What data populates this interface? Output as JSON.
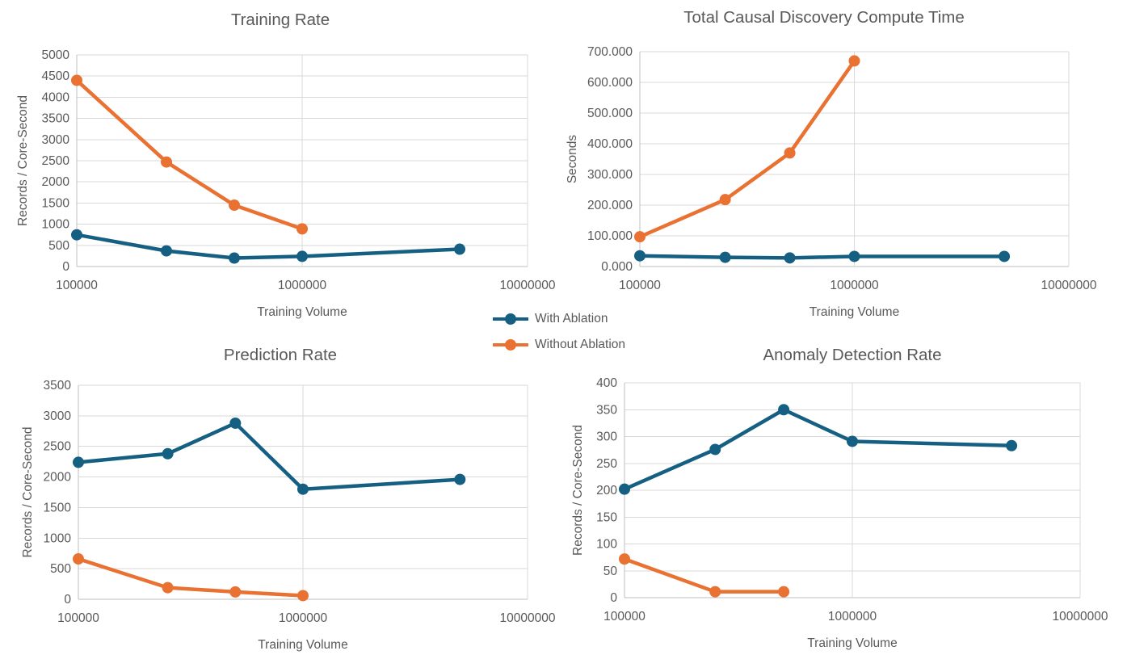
{
  "colors": {
    "with_ablation": "#156082",
    "without_ablation": "#E97132",
    "title_text": "#595959",
    "axis_text": "#595959",
    "gridline": "#D9D9D9",
    "axis_line": "#BFBFBF"
  },
  "legend": {
    "position": "center-between-charts",
    "items": [
      {
        "label": "With Ablation",
        "color_key": "with_ablation"
      },
      {
        "label": "Without Ablation",
        "color_key": "without_ablation"
      }
    ]
  },
  "chart_data": [
    {
      "id": "training-rate",
      "type": "line",
      "title": "Training Rate",
      "xlabel": "Training Volume",
      "ylabel": "Records / Core-Second",
      "x_scale": "log",
      "grid": true,
      "xlim": [
        100000,
        10000000
      ],
      "xticks": [
        100000,
        1000000,
        10000000
      ],
      "xtick_labels": [
        "100000",
        "1000000",
        "10000000"
      ],
      "ylim": [
        0,
        5000
      ],
      "ytick_step": 500,
      "ytick_labels": [
        "0",
        "500",
        "1000",
        "1500",
        "2000",
        "2500",
        "3000",
        "3500",
        "4000",
        "4500",
        "5000"
      ],
      "series": [
        {
          "name": "With Ablation",
          "color_key": "with_ablation",
          "x": [
            100000,
            250000,
            500000,
            1000000,
            5000000
          ],
          "y": [
            750,
            370,
            200,
            240,
            410
          ]
        },
        {
          "name": "Without Ablation",
          "color_key": "without_ablation",
          "x": [
            100000,
            250000,
            500000,
            1000000
          ],
          "y": [
            4400,
            2470,
            1450,
            890
          ]
        }
      ]
    },
    {
      "id": "total-causal-discovery-compute-time",
      "type": "line",
      "title": "Total Causal Discovery Compute Time",
      "xlabel": "Training Volume",
      "ylabel": "Seconds",
      "x_scale": "log",
      "grid": true,
      "xlim": [
        100000,
        10000000
      ],
      "xticks": [
        100000,
        1000000,
        10000000
      ],
      "xtick_labels": [
        "100000",
        "1000000",
        "10000000"
      ],
      "ylim": [
        0,
        700000
      ],
      "ytick_step": 100000,
      "ytick_labels": [
        "0.000",
        "100.000",
        "200.000",
        "300.000",
        "400.000",
        "500.000",
        "600.000",
        "700.000"
      ],
      "series": [
        {
          "name": "With Ablation",
          "color_key": "with_ablation",
          "x": [
            100000,
            250000,
            500000,
            1000000,
            5000000
          ],
          "y": [
            35000,
            30000,
            28000,
            33000,
            33000
          ]
        },
        {
          "name": "Without Ablation",
          "color_key": "without_ablation",
          "x": [
            100000,
            250000,
            500000,
            1000000
          ],
          "y": [
            97000,
            218000,
            370000,
            670000
          ]
        }
      ]
    },
    {
      "id": "prediction-rate",
      "type": "line",
      "title": "Prediction Rate",
      "xlabel": "Training Volume",
      "ylabel": "Records / Core-Second",
      "x_scale": "log",
      "grid": true,
      "xlim": [
        100000,
        10000000
      ],
      "xticks": [
        100000,
        1000000,
        10000000
      ],
      "xtick_labels": [
        "100000",
        "1000000",
        "10000000"
      ],
      "ylim": [
        0,
        3500
      ],
      "ytick_step": 500,
      "ytick_labels": [
        "0",
        "500",
        "1000",
        "1500",
        "2000",
        "2500",
        "3000",
        "3500"
      ],
      "series": [
        {
          "name": "With Ablation",
          "color_key": "with_ablation",
          "x": [
            100000,
            250000,
            500000,
            1000000,
            5000000
          ],
          "y": [
            2240,
            2380,
            2880,
            1800,
            1960
          ]
        },
        {
          "name": "Without Ablation",
          "color_key": "without_ablation",
          "x": [
            100000,
            250000,
            500000,
            1000000
          ],
          "y": [
            660,
            190,
            120,
            60
          ]
        }
      ]
    },
    {
      "id": "anomaly-detection-rate",
      "type": "line",
      "title": "Anomaly Detection Rate",
      "xlabel": "Training Volume",
      "ylabel": "Records / Core-Second",
      "x_scale": "log",
      "grid": true,
      "xlim": [
        100000,
        10000000
      ],
      "xticks": [
        100000,
        1000000,
        10000000
      ],
      "xtick_labels": [
        "100000",
        "1000000",
        "10000000"
      ],
      "ylim": [
        0,
        400
      ],
      "ytick_step": 50,
      "ytick_labels": [
        "0",
        "50",
        "100",
        "150",
        "200",
        "250",
        "300",
        "350",
        "400"
      ],
      "series": [
        {
          "name": "With Ablation",
          "color_key": "with_ablation",
          "x": [
            100000,
            250000,
            500000,
            1000000,
            5000000
          ],
          "y": [
            202,
            276,
            350,
            291,
            283
          ]
        },
        {
          "name": "Without Ablation",
          "color_key": "without_ablation",
          "x": [
            100000,
            250000,
            500000
          ],
          "y": [
            72,
            11,
            11
          ]
        }
      ]
    }
  ]
}
